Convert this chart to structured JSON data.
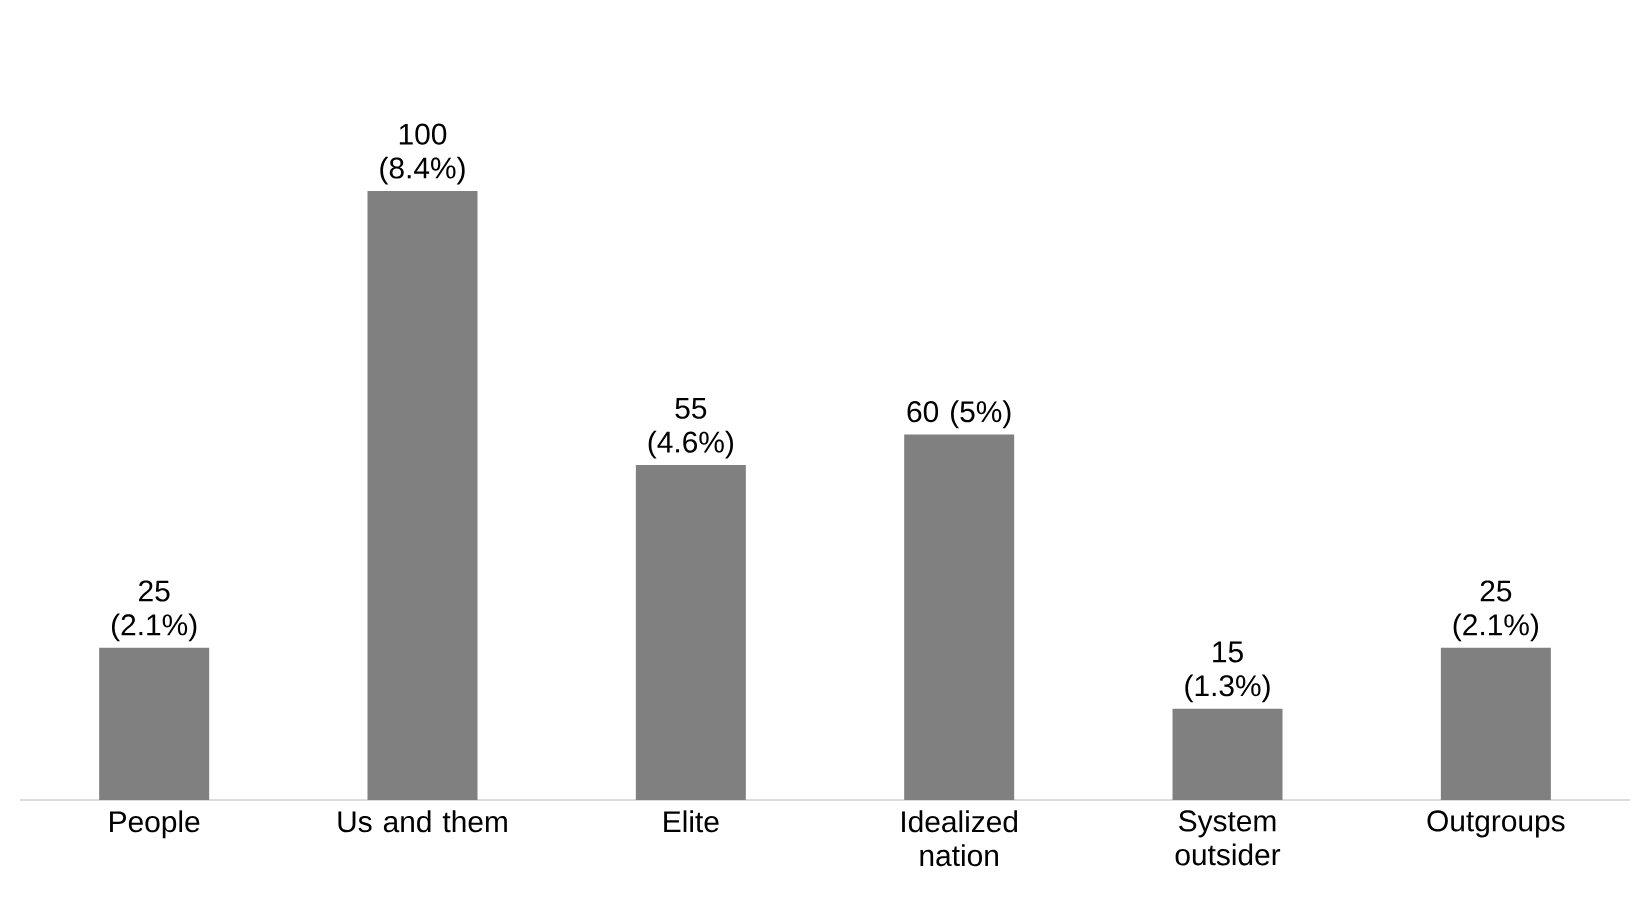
{
  "chart_data": {
    "type": "bar",
    "categories": [
      "People",
      "Us and them",
      "Elite",
      "Idealized nation",
      "System outsider",
      "Outgroups"
    ],
    "values": [
      25,
      100,
      55,
      60,
      15,
      25
    ],
    "color": "#808080",
    "value_labels": [
      "25 (2.1%)",
      "100 (8.4%)",
      "55 (4.6%)",
      "60 (5%)",
      "15 (1.3%)",
      "25 (2.1%)"
    ]
  }
}
